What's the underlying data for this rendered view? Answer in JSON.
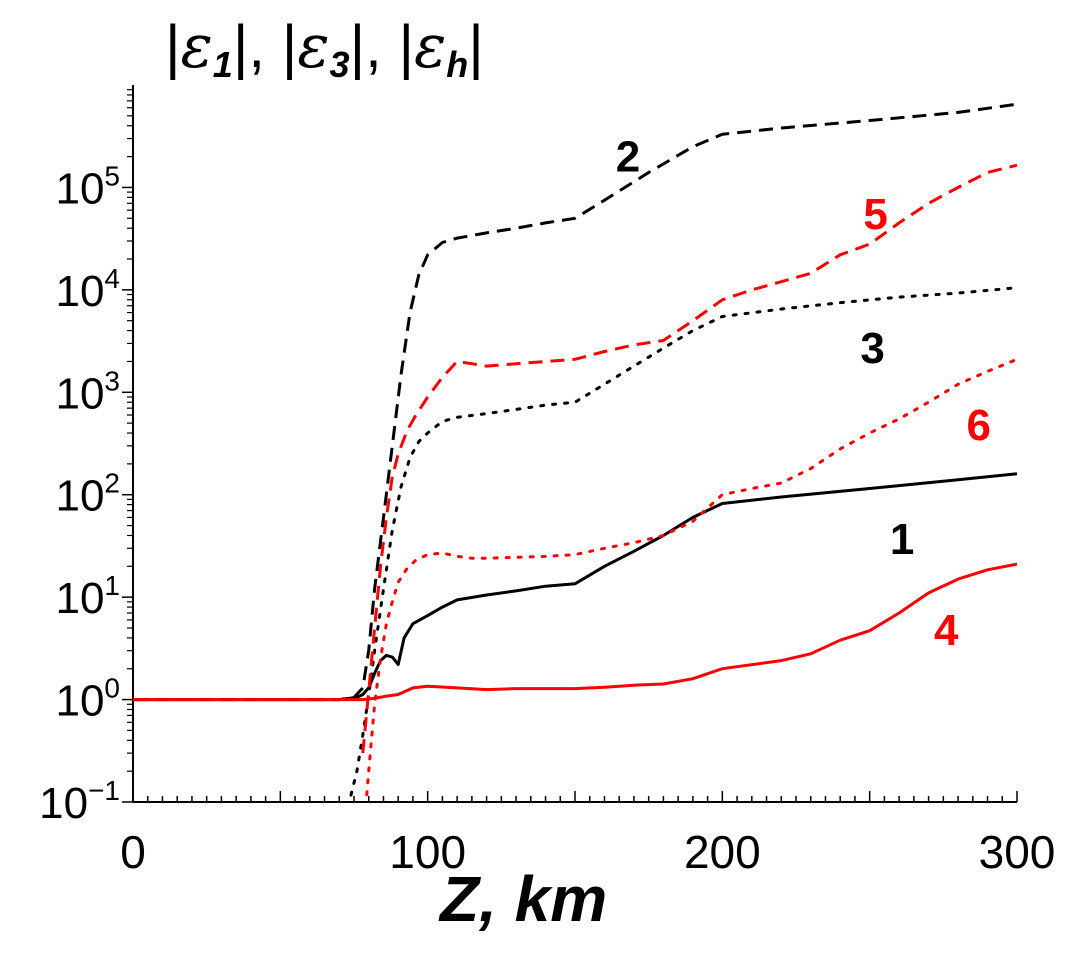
{
  "chart_data": {
    "type": "line",
    "title": "",
    "ylabel_parts": [
      "|",
      "ε",
      "1",
      "|, |",
      "ε",
      "3",
      "|, |",
      "ε",
      "h",
      "|"
    ],
    "xlabel": "Z, km",
    "xlim": [
      0,
      300
    ],
    "ylim_log10": [
      -1,
      6
    ],
    "yscale": "log",
    "xticks": [
      0,
      100,
      200,
      300
    ],
    "yticks": [
      {
        "base": "10",
        "exp": "−1",
        "value": 0.1
      },
      {
        "base": "10",
        "exp": "0",
        "value": 1
      },
      {
        "base": "10",
        "exp": "1",
        "value": 10
      },
      {
        "base": "10",
        "exp": "2",
        "value": 100
      },
      {
        "base": "10",
        "exp": "3",
        "value": 1000
      },
      {
        "base": "10",
        "exp": "4",
        "value": 10000
      },
      {
        "base": "10",
        "exp": "5",
        "value": 100000
      }
    ],
    "series": [
      {
        "name": "1",
        "color": "#000000",
        "style": "solid",
        "x": [
          0,
          70,
          76,
          78,
          80,
          82,
          84,
          86,
          88,
          90,
          92,
          95,
          100,
          105,
          110,
          120,
          130,
          140,
          150,
          160,
          170,
          180,
          190,
          200,
          220,
          250,
          280,
          300
        ],
        "y": [
          1,
          1,
          1.05,
          1.12,
          1.3,
          1.8,
          2.4,
          2.7,
          2.6,
          2.2,
          4.0,
          5.5,
          6.6,
          8.0,
          9.4,
          10.5,
          11.5,
          12.8,
          13.5,
          20,
          28,
          40,
          60,
          82,
          95,
          115,
          140,
          160
        ]
      },
      {
        "name": "2",
        "color": "#000000",
        "style": "dashed",
        "x": [
          0,
          70,
          75,
          78,
          80,
          82,
          85,
          88,
          91,
          94,
          97,
          100,
          105,
          110,
          120,
          130,
          140,
          150,
          160,
          175,
          190,
          200,
          220,
          250,
          280,
          300
        ],
        "y": [
          1,
          1,
          1.05,
          1.3,
          3,
          12,
          60,
          300,
          1500,
          6000,
          14000,
          22000,
          29000,
          32000,
          36000,
          40000,
          45000,
          50000,
          75000,
          140000,
          250000,
          330000,
          380000,
          450000,
          540000,
          650000
        ]
      },
      {
        "name": "3",
        "color": "#000000",
        "style": "dotted",
        "x": [
          73,
          76,
          78,
          80,
          82,
          85,
          88,
          91,
          94,
          97,
          100,
          105,
          110,
          120,
          130,
          140,
          150,
          160,
          170,
          180,
          190,
          200,
          220,
          240,
          260,
          280,
          300
        ],
        "y": [
          0.09,
          0.2,
          0.45,
          1.1,
          3,
          12,
          45,
          120,
          230,
          330,
          400,
          520,
          570,
          620,
          680,
          750,
          800,
          1200,
          1800,
          2700,
          4000,
          5500,
          6500,
          7500,
          8500,
          9300,
          10500
        ]
      },
      {
        "name": "4",
        "color": "#ff0000",
        "style": "solid",
        "x": [
          0,
          70,
          78,
          82,
          86,
          90,
          95,
          100,
          110,
          120,
          130,
          150,
          160,
          170,
          180,
          190,
          200,
          220,
          230,
          240,
          250,
          260,
          270,
          280,
          290,
          300
        ],
        "y": [
          1,
          1,
          1.0,
          1.03,
          1.08,
          1.12,
          1.3,
          1.35,
          1.3,
          1.25,
          1.28,
          1.28,
          1.32,
          1.38,
          1.42,
          1.6,
          2.0,
          2.4,
          2.8,
          3.8,
          4.7,
          7.0,
          11,
          15,
          18.5,
          21
        ]
      },
      {
        "name": "5",
        "color": "#ff0000",
        "style": "dashed",
        "x": [
          78,
          80,
          82,
          84,
          86,
          88,
          90,
          93,
          96,
          100,
          105,
          110,
          115,
          120,
          130,
          140,
          150,
          160,
          170,
          180,
          190,
          200,
          210,
          220,
          230,
          240,
          250,
          260,
          270,
          280,
          290,
          300
        ],
        "y": [
          0.3,
          1.2,
          5,
          20,
          60,
          150,
          250,
          420,
          600,
          900,
          1400,
          2000,
          1900,
          1800,
          1900,
          2000,
          2100,
          2500,
          2900,
          3200,
          5000,
          8000,
          10000,
          12000,
          14500,
          22000,
          28000,
          45000,
          70000,
          100000,
          140000,
          165000
        ]
      },
      {
        "name": "6",
        "color": "#ff0000",
        "style": "dotted",
        "x": [
          79,
          80,
          82,
          84,
          86,
          88,
          90,
          93,
          96,
          100,
          105,
          110,
          115,
          120,
          130,
          140,
          150,
          160,
          170,
          180,
          190,
          200,
          210,
          220,
          230,
          240,
          250,
          260,
          270,
          280,
          290,
          300
        ],
        "y": [
          0.09,
          0.2,
          0.9,
          2.5,
          5.5,
          9,
          14,
          19,
          23,
          26,
          27,
          25,
          24,
          24,
          24.5,
          25,
          26,
          30,
          34,
          40,
          55,
          100,
          115,
          130,
          180,
          280,
          400,
          550,
          800,
          1200,
          1600,
          2100
        ]
      }
    ],
    "annotations": [
      {
        "text": "2",
        "color": "#000000",
        "x": 168,
        "y": 200000
      },
      {
        "text": "5",
        "color": "#ff0000",
        "x": 252,
        "y": 55000
      },
      {
        "text": "3",
        "color": "#000000",
        "x": 251,
        "y": 2700
      },
      {
        "text": "6",
        "color": "#ff0000",
        "x": 287,
        "y": 480
      },
      {
        "text": "1",
        "color": "#000000",
        "x": 261,
        "y": 37
      },
      {
        "text": "4",
        "color": "#ff0000",
        "x": 276,
        "y": 4.8
      }
    ]
  }
}
